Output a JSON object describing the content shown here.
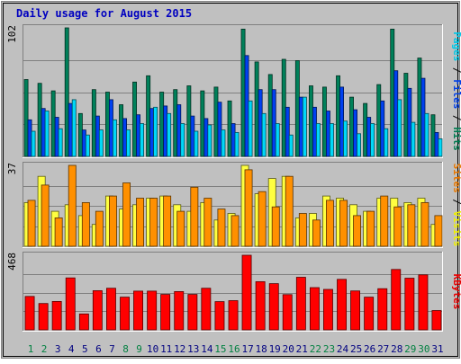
{
  "chart_data": {
    "type": "bar",
    "title": "Daily usage for August 2015",
    "categories": [
      "1",
      "2",
      "3",
      "4",
      "5",
      "6",
      "7",
      "8",
      "9",
      "10",
      "11",
      "12",
      "13",
      "14",
      "15",
      "16",
      "17",
      "18",
      "19",
      "20",
      "21",
      "22",
      "23",
      "24",
      "25",
      "26",
      "27",
      "28",
      "29",
      "30",
      "31"
    ],
    "weekend_days": [
      "1",
      "2",
      "8",
      "9",
      "15",
      "16",
      "22",
      "23",
      "29",
      "30"
    ],
    "panels": [
      {
        "id": "hits",
        "ymax_label": "102",
        "ymax": 102,
        "legend": [
          {
            "text": "Pages",
            "color": "#00c8e8"
          },
          {
            "text": "Files",
            "color": "#0040e8"
          },
          {
            "text": "Hits",
            "color": "#007a50"
          }
        ],
        "series": [
          {
            "name": "Hits",
            "color": "#00805a",
            "values": [
              61,
              58,
              52,
              102,
              34,
              53,
              51,
              41,
              59,
              64,
              51,
              53,
              56,
              52,
              55,
              44,
              101,
              75,
              65,
              77,
              76,
              56,
              55,
              64,
              47,
              42,
              57,
              101,
              66,
              78,
              33
            ]
          },
          {
            "name": "Files",
            "color": "#0040f0",
            "values": [
              29,
              38,
              31,
              42,
              21,
              32,
              45,
              30,
              33,
              38,
              40,
              41,
              32,
              30,
              43,
              26,
              80,
              53,
              53,
              39,
              47,
              39,
              36,
              55,
              37,
              31,
              44,
              68,
              54,
              62,
              19
            ]
          },
          {
            "name": "Pages",
            "color": "#00d8f8",
            "values": [
              20,
              36,
              22,
              45,
              17,
              21,
              29,
              21,
              26,
              39,
              34,
              26,
              20,
              25,
              21,
              19,
              44,
              34,
              26,
              17,
              47,
              26,
              26,
              28,
              18,
              26,
              22,
              45,
              27,
              34,
              14
            ]
          }
        ]
      },
      {
        "id": "visits",
        "ymax_label": "37",
        "ymax": 37,
        "legend": [
          {
            "text": "Sites",
            "color": "#e87800"
          },
          {
            "text": "Visits",
            "color": "#f0f000"
          }
        ],
        "series": [
          {
            "name": "Visits",
            "color": "#ffff40",
            "values": [
              20,
              32,
              16,
              19,
              14,
              10,
              23,
              17,
              19,
              22,
              23,
              19,
              16,
              20,
              12,
              15,
              37,
              24,
              31,
              32,
              13,
              15,
              23,
              22,
              19,
              16,
              22,
              22,
              20,
              22,
              10
            ]
          },
          {
            "name": "Sites",
            "color": "#ff9000",
            "values": [
              21,
              28,
              13,
              37,
              20,
              16,
              23,
              29,
              22,
              22,
              23,
              16,
              27,
              22,
              17,
              14,
              35,
              25,
              18,
              32,
              15,
              12,
              21,
              21,
              14,
              16,
              23,
              18,
              19,
              20,
              14
            ]
          }
        ]
      },
      {
        "id": "kbytes",
        "ymax_label": "468",
        "ymax": 468,
        "legend": [
          {
            "text": "KBytes",
            "color": "#e80000"
          }
        ],
        "series": [
          {
            "name": "KBytes",
            "color": "#ff0000",
            "values": [
              210,
              165,
              178,
              326,
              100,
              246,
              261,
              205,
              243,
              243,
              222,
              240,
              222,
              261,
              177,
              183,
              468,
              302,
              290,
              221,
              330,
              265,
              254,
              317,
              244,
              205,
              258,
              379,
              324,
              345,
              121
            ]
          }
        ]
      }
    ]
  }
}
